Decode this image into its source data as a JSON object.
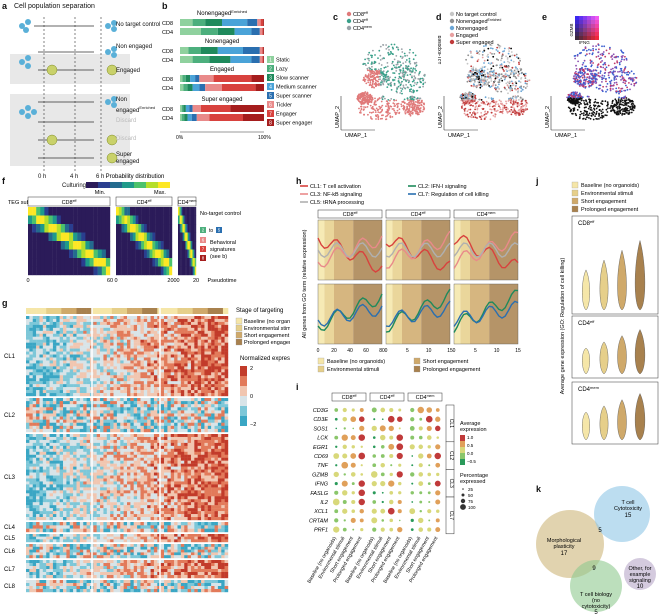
{
  "panel_letters": {
    "a": "a",
    "b": "b",
    "c": "c",
    "d": "d",
    "e": "e",
    "f": "f",
    "g": "g",
    "h": "h",
    "i": "i",
    "j": "j",
    "k": "k"
  },
  "panel_a": {
    "title": "Cell population separation",
    "rows": [
      "No target control",
      "Non engaged",
      "Engaged",
      "Non engaged",
      "Discard",
      "Discard",
      "Super engaged"
    ],
    "row3_suffix": "Enriched",
    "times": [
      "0 h",
      "4 h",
      "6 h"
    ],
    "xlabel": "Culturing"
  },
  "panel_b": {
    "groups": [
      {
        "title": "Nonengaged",
        "suffix": "Enriched"
      },
      {
        "title": "Nonengaged",
        "suffix": ""
      },
      {
        "title": "Engaged",
        "suffix": ""
      },
      {
        "title": "Super engaged",
        "suffix": ""
      }
    ],
    "row_labels": [
      "CD8",
      "CD4"
    ],
    "x_ticks": [
      "0%",
      "100%"
    ],
    "legend": [
      {
        "n": "1",
        "label": "Static",
        "color": "#8fd19e"
      },
      {
        "n": "2",
        "label": "Lazy",
        "color": "#4caf7d"
      },
      {
        "n": "3",
        "label": "Slow scanner",
        "color": "#1f8a5c"
      },
      {
        "n": "4",
        "label": "Medium scanner",
        "color": "#4aa3d8"
      },
      {
        "n": "5",
        "label": "Super scanner",
        "color": "#2a6fb0"
      },
      {
        "n": "6",
        "label": "Tickler",
        "color": "#e98a8a"
      },
      {
        "n": "7",
        "label": "Engager",
        "color": "#d8423e"
      },
      {
        "n": "8",
        "label": "Super engager",
        "color": "#a51d1d"
      }
    ]
  },
  "panel_c": {
    "legend": [
      {
        "label": "CD8",
        "sup": "eff",
        "color": "#e07a7a"
      },
      {
        "label": "CD4",
        "sup": "eff",
        "color": "#3aa08a"
      },
      {
        "label": "CD4",
        "sup": "mem",
        "color": "#9aa2a8"
      }
    ],
    "xlabel": "UMAP_1",
    "ylabel": "UMAP_2"
  },
  "panel_d": {
    "legend": [
      {
        "label": "No target control",
        "color": "#c6c6c6"
      },
      {
        "label": "Nonengaged",
        "sup": "Enriched",
        "color": "#8f8f8f"
      },
      {
        "label": "Nonengaged",
        "color": "#6aa6d6"
      },
      {
        "label": "Engaged",
        "color": "#e8a0a0"
      },
      {
        "label": "Super engaged",
        "color": "#c03a3a"
      }
    ],
    "side": "13T-exposed",
    "xlabel": "UMAP_1",
    "ylabel": "UMAP_2"
  },
  "panel_e": {
    "xlabel": "UMAP_1",
    "ylabel": "UMAP_2",
    "key_x": "IFNG",
    "key_y": "GZMB"
  },
  "panel_f": {
    "title": "Probability distribution",
    "min": "Min.",
    "max": "Max.",
    "ylabel": "TEG subtype",
    "groups": [
      {
        "label": "CD8",
        "sup": "eff"
      },
      {
        "label": "CD4",
        "sup": "eff"
      },
      {
        "label": "CD4",
        "sup": "mem"
      }
    ],
    "x_ticks": [
      "0",
      "60",
      "0",
      "200",
      "0",
      "20"
    ],
    "xlabel": "Pseudotime",
    "legend_title": "No-target control",
    "legend_range_from": "2",
    "legend_range_word": "to",
    "legend_range_to": "5",
    "legend_items": [
      "6",
      "7",
      "8"
    ],
    "legend_text": [
      "Behavioral",
      "signatures",
      "(see b)"
    ]
  },
  "panel_g": {
    "clusters": [
      "CL1",
      "CL2",
      "CL3",
      "CL4",
      "CL5",
      "CL6",
      "CL7",
      "CL8"
    ],
    "stage_title": "Stage of targeting",
    "stages": [
      {
        "label": "Baseline (no organoids)",
        "color": "#f5e6a8"
      },
      {
        "label": "Environmental stimuli",
        "color": "#e6cf8a"
      },
      {
        "label": "Short engagement",
        "color": "#cfa96a"
      },
      {
        "label": "Prolonged engagement",
        "color": "#a8814e"
      }
    ],
    "scale_title": "Normalized expression",
    "scale_ticks": [
      "2",
      "0",
      "−2"
    ]
  },
  "panel_h": {
    "legend": [
      {
        "label": "CL1: T cell activation",
        "color": "#d8423e"
      },
      {
        "label": "CL2: IFN-I signaling",
        "color": "#1f8a5c"
      },
      {
        "label": "CL3: NF-kB signaling",
        "color": "#e98a8a"
      },
      {
        "label": "CL7: Regulation of cell killing",
        "color": "#2a6fb0"
      },
      {
        "label": "CL5: tRNA processing",
        "color": "#b0b0b0"
      }
    ],
    "groups": [
      {
        "label": "CD8",
        "sup": "eff"
      },
      {
        "label": "CD4",
        "sup": "eff"
      },
      {
        "label": "CD4",
        "sup": "mem"
      }
    ],
    "ylabel": "All genes from GO term (relative expression)",
    "x_ticks_1": [
      "0",
      "20",
      "40",
      "60",
      "80"
    ],
    "x_ticks_2": [
      "0",
      "5",
      "10",
      "15"
    ],
    "x_ticks_3": [
      "0",
      "5",
      "10",
      "15"
    ],
    "legend_bottom": [
      {
        "label": "Baseline (no organoids)",
        "color": "#f5e6a8"
      },
      {
        "label": "Short engagement",
        "color": "#cfa96a"
      },
      {
        "label": "Environmental stimuli",
        "color": "#e6cf8a"
      },
      {
        "label": "Prolonged engagement",
        "color": "#a8814e"
      }
    ]
  },
  "panel_i": {
    "groups": [
      {
        "label": "CD8",
        "sup": "eff"
      },
      {
        "label": "CD4",
        "sup": "eff"
      },
      {
        "label": "CD4",
        "sup": "mem"
      }
    ],
    "genes": [
      "CD3G",
      "CD3E",
      "SOS1",
      "LCK",
      "EGR1",
      "CD69",
      "TNF",
      "GZMB",
      "IFNG",
      "FASLG",
      "IL2",
      "XCL1",
      "CRTAM",
      "PRF1"
    ],
    "clusters": [
      {
        "label": "CL1"
      },
      {
        "label": "CL2"
      },
      {
        "label": "CL3"
      },
      {
        "label": "CL7"
      }
    ],
    "x_labels": [
      "Baseline (no organoids)",
      "Environmental stimuli",
      "Short engagement",
      "Prolonged engagement"
    ],
    "avg_title": [
      "Average",
      "expression"
    ],
    "avg_ticks": [
      "1.0",
      "0.5",
      "0.0",
      "−0.5"
    ],
    "pct_title": [
      "Percentage",
      "expressed"
    ],
    "pct_ticks": [
      "25",
      "50",
      "75",
      "100"
    ]
  },
  "panel_j": {
    "legend": [
      {
        "label": "Baseline (no organoids)",
        "color": "#f5e6a8"
      },
      {
        "label": "Environmental stimuli",
        "color": "#e6cf8a"
      },
      {
        "label": "Short engagement",
        "color": "#cfa96a"
      },
      {
        "label": "Prolonged engagement",
        "color": "#a8814e"
      }
    ],
    "groups": [
      {
        "label": "CD8",
        "sup": "eff"
      },
      {
        "label": "CD4",
        "sup": "eff"
      },
      {
        "label": "CD4",
        "sup": "mem"
      }
    ],
    "ylabel": "Average gene expression (GO: Regulation of cell killing)"
  },
  "panel_k": {
    "circles": [
      {
        "label": "Morphological plasticity",
        "value": "17",
        "color": "#cdb57a"
      },
      {
        "label": "T cell Cytotoxicity",
        "value": "15",
        "color": "#8fc6e6"
      },
      {
        "label": "T cell biology (no cytotoxicity)",
        "value": "5",
        "color": "#8fc98f"
      },
      {
        "label": "Other, for example signaling",
        "value": "10",
        "color": "#b7a7c8"
      }
    ],
    "overlaps": [
      "5",
      "9"
    ]
  }
}
